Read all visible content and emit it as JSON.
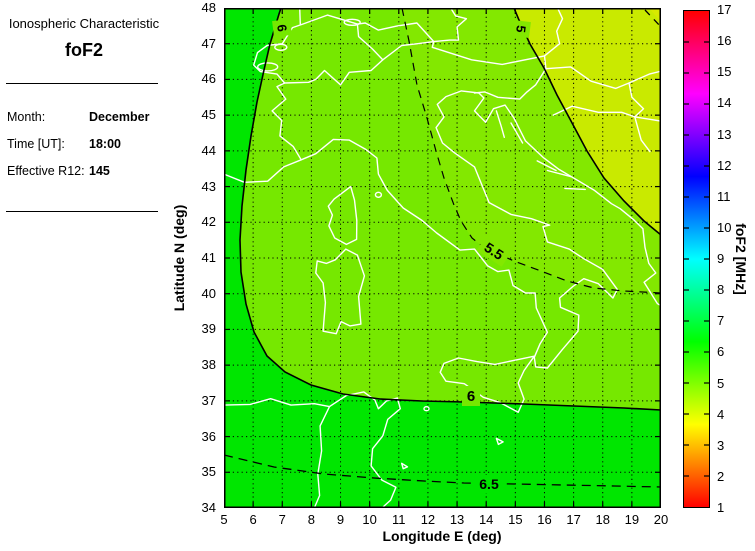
{
  "panel": {
    "title": "Ionospheric Characteristic",
    "characteristic": "foF2",
    "fields": [
      {
        "label": "Month:",
        "value": "December"
      },
      {
        "label": "Time [UT]:",
        "value": "18:00"
      },
      {
        "label": "Effective R12:",
        "value": "145"
      }
    ]
  },
  "chart_data": {
    "type": "heatmap",
    "subtype": "filled-contour-geographic-map",
    "title": "foF2",
    "xlabel": "Longitude E (deg)",
    "ylabel": "Latitude N (deg)",
    "xlim": [
      5,
      20
    ],
    "ylim": [
      34,
      48
    ],
    "x_ticks": [
      5,
      6,
      7,
      8,
      9,
      10,
      11,
      12,
      13,
      14,
      15,
      16,
      17,
      18,
      19,
      20
    ],
    "y_ticks": [
      34,
      35,
      36,
      37,
      38,
      39,
      40,
      41,
      42,
      43,
      44,
      45,
      46,
      47,
      48
    ],
    "grid": "dotted-black",
    "coastline_color": "#ffffff",
    "contours": [
      {
        "level": 4.5,
        "style": "dashed"
      },
      {
        "level": 5,
        "style": "solid"
      },
      {
        "level": 5.5,
        "style": "dashed"
      },
      {
        "level": 6,
        "style": "solid"
      },
      {
        "level": 6.5,
        "style": "dashed"
      }
    ],
    "contour_labels": {
      "west_top_6": "6",
      "ne_top_5": "5",
      "mid_55": "5.5",
      "south_6": "6",
      "south_65": "6.5"
    },
    "bands": [
      {
        "range": "6.5-7",
        "color": "#00e600"
      },
      {
        "range": "6-6.5",
        "color": "#00e600"
      },
      {
        "range": "5.5-6",
        "color": "#76e800"
      },
      {
        "range": "5-5.5",
        "color": "#83e800"
      },
      {
        "range": "4.5-5",
        "color": "#c9ea00"
      },
      {
        "range": "4-4.5",
        "color": "#d8ea00"
      }
    ],
    "colorbar": {
      "label": "foF2 [MHz]",
      "min": 1,
      "max": 17,
      "ticks": [
        1,
        2,
        3,
        4,
        5,
        6,
        7,
        8,
        9,
        10,
        11,
        12,
        13,
        14,
        15,
        16,
        17
      ],
      "colors_bottom_to_top": [
        "#ff0000",
        "#ff8000",
        "#ffff00",
        "#80ff00",
        "#00ff00",
        "#00ff80",
        "#00ffff",
        "#0080ff",
        "#0000ff",
        "#8000ff",
        "#ff00ff",
        "#ff0080",
        "#ff0000"
      ]
    }
  }
}
